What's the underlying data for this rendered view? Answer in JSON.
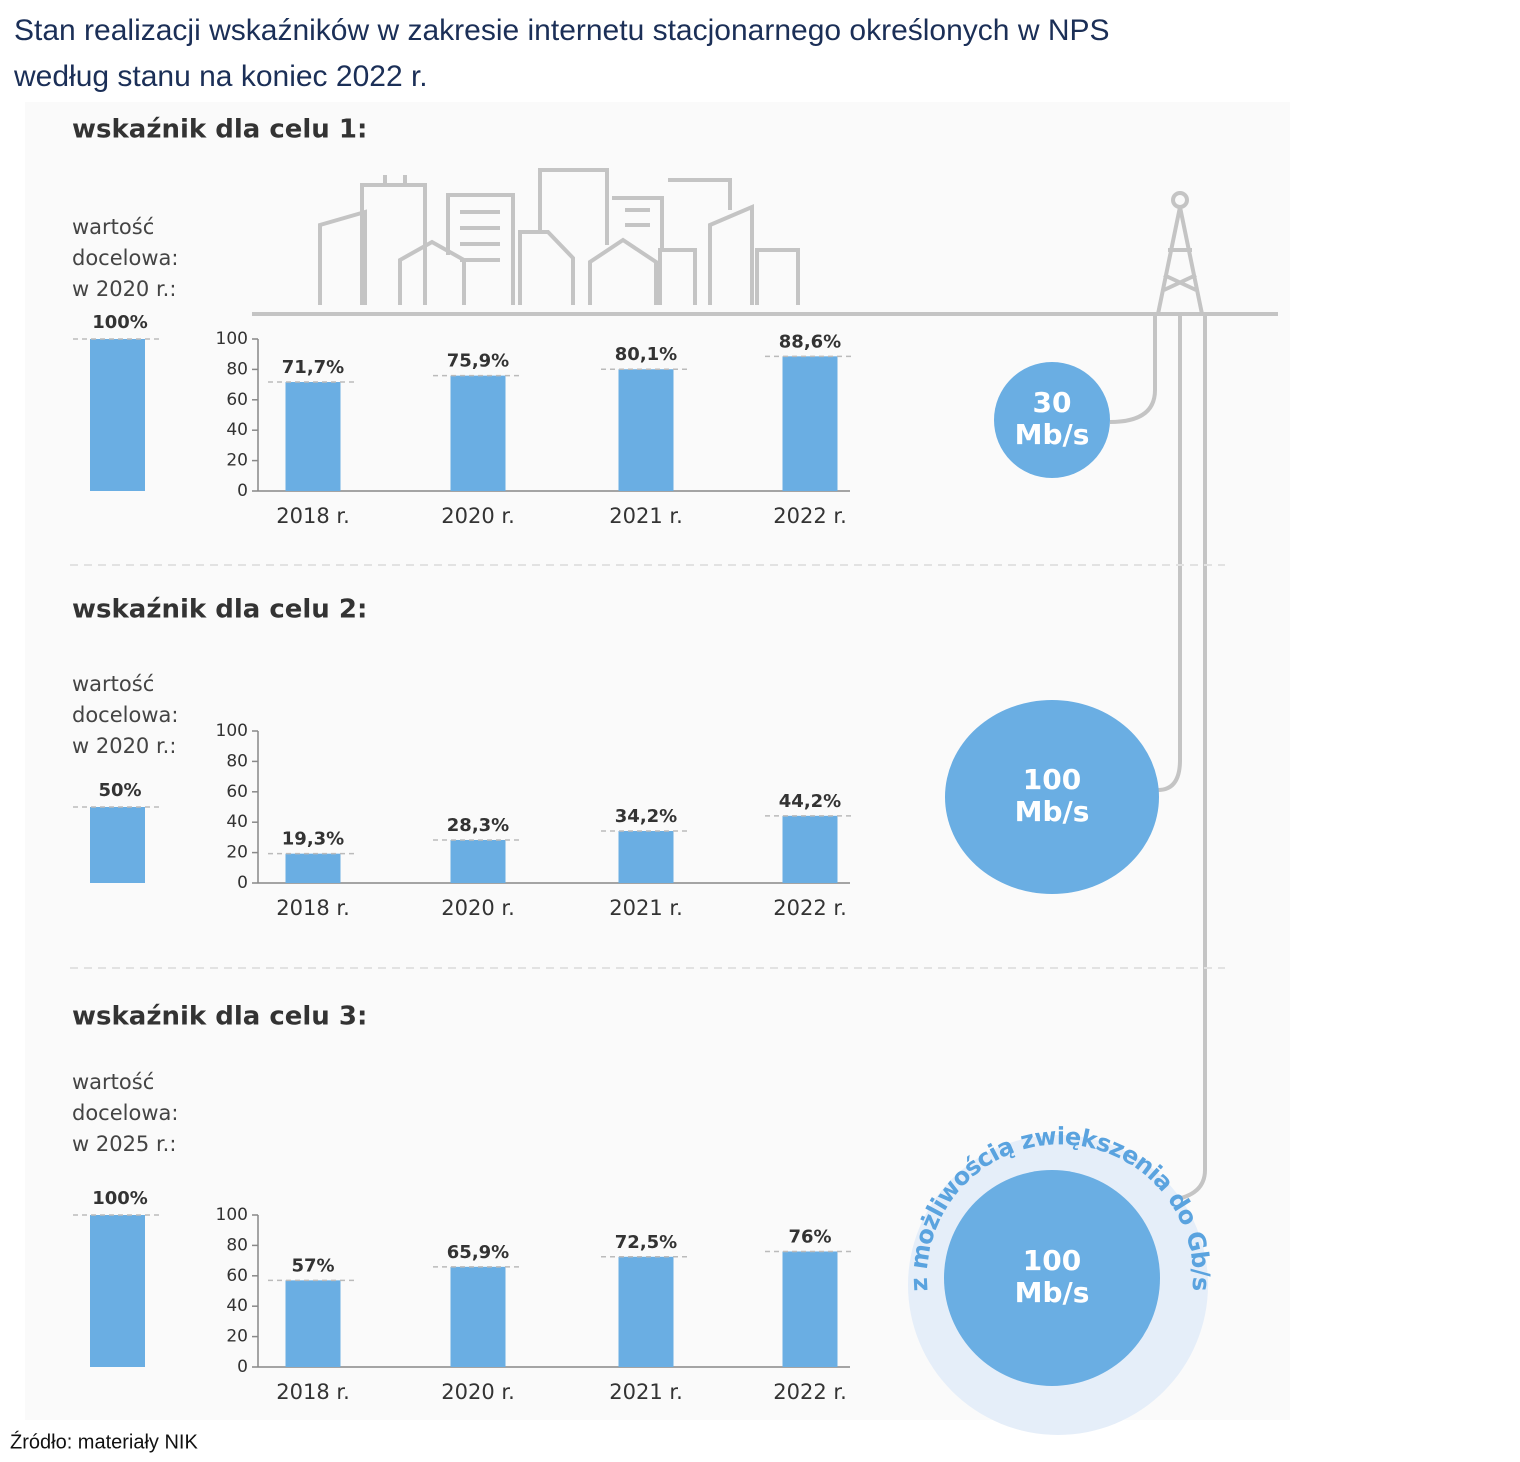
{
  "title": [
    "Stan realizacji wskaźników w zakresie internetu stacjonarnego określonych w NPS",
    "według stanu na koniec 2022 r."
  ],
  "source": "Źródło: materiały NIK",
  "chart_data": [
    {
      "type": "bar",
      "title": "wskaźnik dla celu 1:",
      "color": "#6aaee3",
      "target": {
        "label": [
          "wartość",
          "docelowa:",
          "w 2020 r.:"
        ],
        "value": 100,
        "value_label": "100%"
      },
      "categories": [
        "2018 r.",
        "2020 r.",
        "2021 r.",
        "2022 r."
      ],
      "values": [
        71.7,
        75.9,
        80.1,
        88.6
      ],
      "value_labels": [
        "71,7%",
        "75,9%",
        "80,1%",
        "88,6%"
      ],
      "ylim": [
        0,
        100
      ],
      "yticks": [
        0,
        20,
        40,
        60,
        80,
        100
      ],
      "speed": [
        "30",
        "Mb/s"
      ]
    },
    {
      "type": "bar",
      "title": "wskaźnik dla celu 2:",
      "color": "#6aaee3",
      "target": {
        "label": [
          "wartość",
          "docelowa:",
          "w 2020 r.:"
        ],
        "value": 50,
        "value_label": "50%"
      },
      "categories": [
        "2018 r.",
        "2020 r.",
        "2021 r.",
        "2022 r."
      ],
      "values": [
        19.3,
        28.3,
        34.2,
        44.2
      ],
      "value_labels": [
        "19,3%",
        "28,3%",
        "34,2%",
        "44,2%"
      ],
      "ylim": [
        0,
        100
      ],
      "yticks": [
        0,
        20,
        40,
        60,
        80,
        100
      ],
      "speed": [
        "100",
        "Mb/s"
      ]
    },
    {
      "type": "bar",
      "title": "wskaźnik dla celu 3:",
      "color": "#6aaee3",
      "target": {
        "label": [
          "wartość",
          "docelowa:",
          "w 2025 r.:"
        ],
        "value": 100,
        "value_label": "100%"
      },
      "categories": [
        "2018 r.",
        "2020 r.",
        "2021 r.",
        "2022 r."
      ],
      "values": [
        57,
        65.9,
        72.5,
        76
      ],
      "value_labels": [
        "57%",
        "65,9%",
        "72,5%",
        "76%"
      ],
      "ylim": [
        0,
        100
      ],
      "yticks": [
        0,
        20,
        40,
        60,
        80,
        100
      ],
      "speed": [
        "100",
        "Mb/s"
      ],
      "speed_note": "z możliwością zwiększenia do Gb/s"
    }
  ]
}
